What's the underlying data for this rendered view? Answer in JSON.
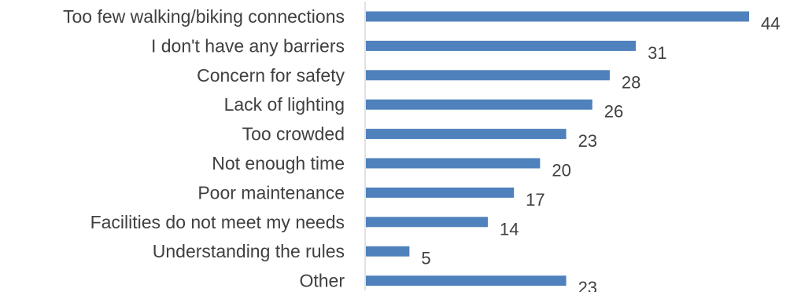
{
  "chart_data": {
    "type": "bar",
    "orientation": "horizontal",
    "categories": [
      "Too few walking/biking connections",
      "I don't have any barriers",
      "Concern for safety",
      "Lack of lighting",
      "Too crowded",
      "Not enough time",
      "Poor maintenance",
      "Facilities do not meet my needs",
      "Understanding the rules",
      "Other"
    ],
    "values": [
      44,
      31,
      28,
      26,
      23,
      20,
      17,
      14,
      5,
      23
    ],
    "xlim": [
      0,
      44
    ],
    "grid": false,
    "legend": "none",
    "bar_color": "#4f81bd"
  }
}
